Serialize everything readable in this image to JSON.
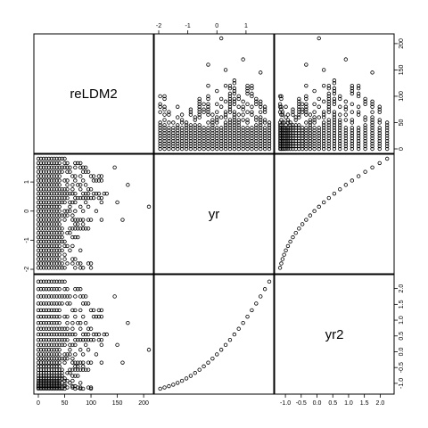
{
  "chart_data": {
    "type": "scatter",
    "variables": [
      "reLDM2",
      "yr",
      "yr2"
    ],
    "ranges": {
      "reLDM2": [
        0,
        210
      ],
      "yr": [
        -2.0,
        1.8
      ],
      "yr2": [
        -1.2,
        2.3
      ]
    },
    "axis_ticks": {
      "reLDM2": {
        "values": [
          0,
          50,
          100,
          150,
          200
        ],
        "labels": [
          "0",
          "50",
          "100",
          "150",
          "200"
        ]
      },
      "yr": {
        "values": [
          -2,
          -1,
          0,
          1
        ],
        "labels": [
          "-2",
          "-1",
          "0",
          "1"
        ]
      },
      "yr2": {
        "values": [
          -1.0,
          -0.5,
          0.0,
          0.5,
          1.0,
          1.5,
          2.0
        ],
        "labels": [
          "-1.0",
          "-0.5",
          "0.0",
          "0.5",
          "1.0",
          "1.5",
          "2.0"
        ]
      }
    },
    "yr_levels": [
      -1.95,
      -1.8,
      -1.65,
      -1.5,
      -1.35,
      -1.2,
      -1.05,
      -0.9,
      -0.75,
      -0.6,
      -0.45,
      -0.3,
      -0.15,
      0.0,
      0.15,
      0.3,
      0.45,
      0.6,
      0.75,
      0.9,
      1.05,
      1.2,
      1.35,
      1.5,
      1.65,
      1.8
    ],
    "yr2_levels": [
      -1.17,
      -1.14,
      -1.11,
      -1.08,
      -1.04,
      -1.0,
      -0.95,
      -0.9,
      -0.84,
      -0.78,
      -0.71,
      -0.64,
      -0.56,
      -0.48,
      -0.39,
      -0.3,
      -0.2,
      -0.1,
      0.01,
      0.12,
      0.24,
      0.36,
      0.49,
      0.62,
      0.76,
      0.9,
      1.05,
      1.2,
      1.36,
      1.52,
      1.69,
      1.86,
      2.04,
      2.22
    ],
    "reLDM2_max_by_yr_level": [
      100,
      105,
      75,
      60,
      80,
      70,
      60,
      85,
      75,
      95,
      90,
      120,
      80,
      110,
      95,
      130,
      120,
      140,
      105,
      100,
      130,
      120,
      115,
      95,
      80,
      70
    ],
    "outliers": [
      {
        "reLDM2": 210,
        "yr": 0.15
      },
      {
        "reLDM2": 170,
        "yr": 0.9
      },
      {
        "reLDM2": 160,
        "yr": -0.3
      },
      {
        "reLDM2": 150,
        "yr": 0.3
      },
      {
        "reLDM2": 145,
        "yr": 1.5
      }
    ],
    "grid": false,
    "legend": "none"
  }
}
